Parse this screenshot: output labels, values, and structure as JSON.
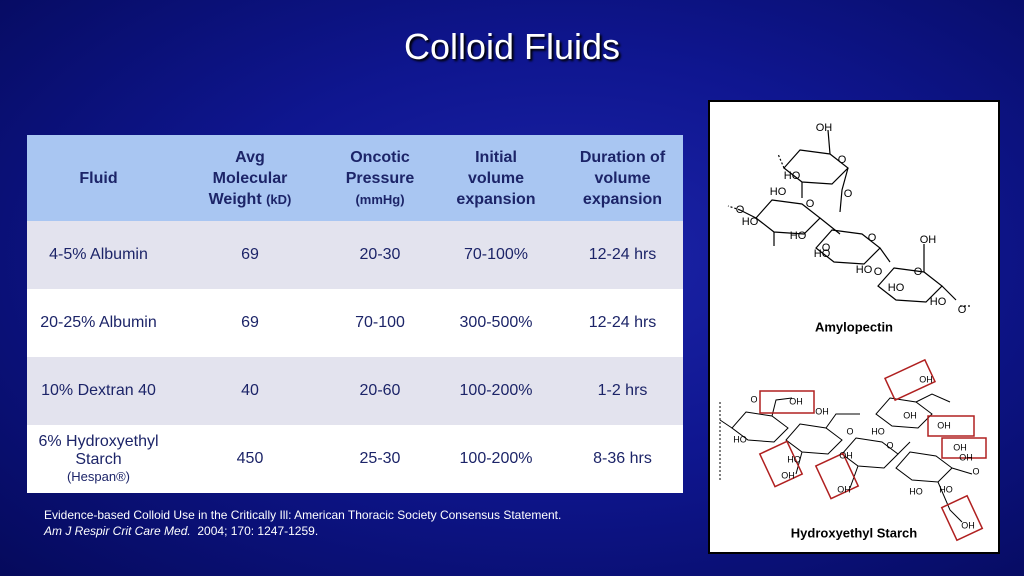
{
  "title": "Colloid Fluids",
  "table": {
    "header": [
      {
        "text": "Fluid"
      },
      {
        "text": "Avg Molecular Weight",
        "unit": "(kD)"
      },
      {
        "text": "Oncotic Pressure",
        "unit": "(mmHg)"
      },
      {
        "text": "Initial volume expansion"
      },
      {
        "text": "Duration of volume expansion"
      }
    ],
    "rows": [
      {
        "cells": [
          "4-5% Albumin",
          "69",
          "20-30",
          "70-100%",
          "12-24 hrs"
        ]
      },
      {
        "cells": [
          "20-25% Albumin",
          "69",
          "70-100",
          "300-500%",
          "12-24 hrs"
        ]
      },
      {
        "cells": [
          "10% Dextran 40",
          "40",
          "20-60",
          "100-200%",
          "1-2 hrs"
        ]
      },
      {
        "cells": [
          "6% Hydroxyethyl Starch",
          "450",
          "25-30",
          "100-200%",
          "8-36 hrs"
        ],
        "note": "(Hespan®)"
      }
    ]
  },
  "citation": {
    "line1": "Evidence-based Colloid Use in the Critically Ill: American Thoracic Society Consensus Statement.",
    "journal": "Am J Respir Crit Care Med.",
    "details": "2004; 170: 1247-1259."
  },
  "figures": [
    {
      "caption": "Amylopectin",
      "labels": [
        "OH",
        "O",
        "HO",
        "HO",
        "O",
        "O",
        "O",
        "HO",
        "HO",
        "O",
        "OH",
        "O",
        "HO",
        "HO",
        "O",
        "O",
        "HO",
        "HO",
        "O"
      ]
    },
    {
      "caption": "Hydroxyethyl Starch",
      "labels": [
        "O",
        "OH",
        "OH",
        "HO",
        "HO",
        "OH",
        "O",
        "OH",
        "HO",
        "OH",
        "OH",
        "O",
        "OH",
        "OH",
        "OH",
        "HO",
        "HO",
        "OH",
        "O",
        "OH"
      ]
    }
  ]
}
